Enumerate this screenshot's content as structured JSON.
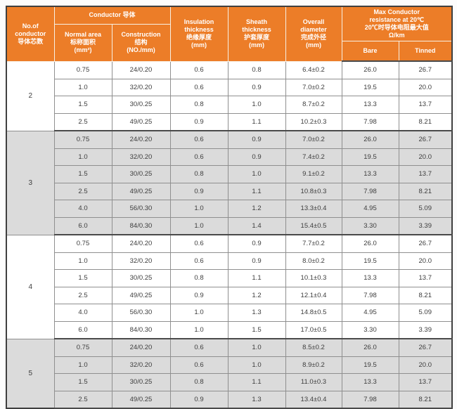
{
  "header": {
    "no_of_conductor": [
      "No.of",
      "conductor",
      "导体芯数"
    ],
    "conductor_group": "Conductor 导体",
    "normal_area": [
      "Normal area",
      "标称面积",
      "(mm²)"
    ],
    "construction": [
      "Construction",
      "结构",
      "(NO./mm)"
    ],
    "insulation": [
      "Insulation",
      "thickness",
      "绝缘厚度",
      "(mm)"
    ],
    "sheath": [
      "Sheath",
      "thickness",
      "护套厚度",
      "(mm)"
    ],
    "overall": [
      "Overall",
      "diameter",
      "完成外径",
      "(mm)"
    ],
    "resistance_group": [
      "Max Conductor",
      "resistance at 20℃",
      "20℃时导体电阻最大值",
      "Ω/km"
    ],
    "bare": "Bare",
    "tinned": "Tinned"
  },
  "groups": [
    {
      "conductors": "2",
      "shaded": false,
      "rows": [
        [
          "0.75",
          "24/0.20",
          "0.6",
          "0.8",
          "6.4±0.2",
          "26.0",
          "26.7"
        ],
        [
          "1.0",
          "32/0.20",
          "0.6",
          "0.9",
          "7.0±0.2",
          "19.5",
          "20.0"
        ],
        [
          "1.5",
          "30/0.25",
          "0.8",
          "1.0",
          "8.7±0.2",
          "13.3",
          "13.7"
        ],
        [
          "2.5",
          "49/0.25",
          "0.9",
          "1.1",
          "10.2±0.3",
          "7.98",
          "8.21"
        ]
      ]
    },
    {
      "conductors": "3",
      "shaded": true,
      "rows": [
        [
          "0.75",
          "24/0.20",
          "0.6",
          "0.9",
          "7.0±0.2",
          "26.0",
          "26.7"
        ],
        [
          "1.0",
          "32/0.20",
          "0.6",
          "0.9",
          "7.4±0.2",
          "19.5",
          "20.0"
        ],
        [
          "1.5",
          "30/0.25",
          "0.8",
          "1.0",
          "9.1±0.2",
          "13.3",
          "13.7"
        ],
        [
          "2.5",
          "49/0.25",
          "0.9",
          "1.1",
          "10.8±0.3",
          "7.98",
          "8.21"
        ],
        [
          "4.0",
          "56/0.30",
          "1.0",
          "1.2",
          "13.3±0.4",
          "4.95",
          "5.09"
        ],
        [
          "6.0",
          "84/0.30",
          "1.0",
          "1.4",
          "15.4±0.5",
          "3.30",
          "3.39"
        ]
      ]
    },
    {
      "conductors": "4",
      "shaded": false,
      "rows": [
        [
          "0.75",
          "24/0.20",
          "0.6",
          "0.9",
          "7.7±0.2",
          "26.0",
          "26.7"
        ],
        [
          "1.0",
          "32/0.20",
          "0.6",
          "0.9",
          "8.0±0.2",
          "19.5",
          "20.0"
        ],
        [
          "1.5",
          "30/0.25",
          "0.8",
          "1.1",
          "10.1±0.3",
          "13.3",
          "13.7"
        ],
        [
          "2.5",
          "49/0.25",
          "0.9",
          "1.2",
          "12.1±0.4",
          "7.98",
          "8.21"
        ],
        [
          "4.0",
          "56/0.30",
          "1.0",
          "1.3",
          "14.8±0.5",
          "4.95",
          "5.09"
        ],
        [
          "6.0",
          "84/0.30",
          "1.0",
          "1.5",
          "17.0±0.5",
          "3.30",
          "3.39"
        ]
      ]
    },
    {
      "conductors": "5",
      "shaded": true,
      "rows": [
        [
          "0.75",
          "24/0.20",
          "0.6",
          "1.0",
          "8.5±0.2",
          "26.0",
          "26.7"
        ],
        [
          "1.0",
          "32/0.20",
          "0.6",
          "1.0",
          "8.9±0.2",
          "19.5",
          "20.0"
        ],
        [
          "1.5",
          "30/0.25",
          "0.8",
          "1.1",
          "11.0±0.3",
          "13.3",
          "13.7"
        ],
        [
          "2.5",
          "49/0.25",
          "0.9",
          "1.3",
          "13.4±0.4",
          "7.98",
          "8.21"
        ]
      ]
    }
  ],
  "colors": {
    "header_bg": "#EC7D28",
    "header_text": "#FFFFFF",
    "header_divider": "#F7F0E4",
    "shaded_row_bg": "#DBDBDB",
    "row_bg": "#FFFFFF",
    "border_dark": "#4A4A4A",
    "border_light": "#8F8F8F",
    "text": "#3D3D3D"
  }
}
